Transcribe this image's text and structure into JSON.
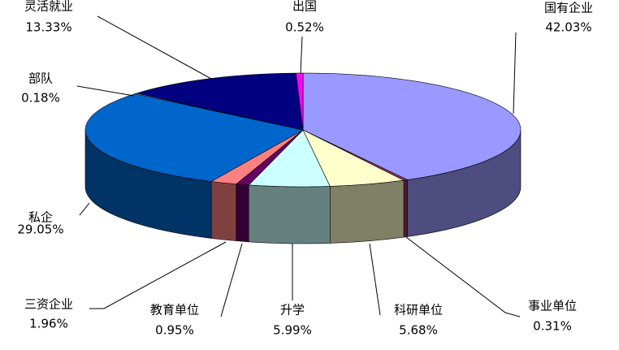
{
  "chart_data": {
    "type": "pie3d",
    "categories": [
      "国有企业",
      "事业单位",
      "科研单位",
      "升学",
      "教育单位",
      "三资企业",
      "私企",
      "部队",
      "灵活就业",
      "出国"
    ],
    "values": [
      42.03,
      0.31,
      5.68,
      5.99,
      0.95,
      1.96,
      29.05,
      0.18,
      13.33,
      0.52
    ],
    "value_labels": [
      "42.03%",
      "0.31%",
      "5.68%",
      "5.99%",
      "0.95%",
      "1.96%",
      "29.05%",
      "0.18%",
      "13.33%",
      "0.52%"
    ],
    "colors": [
      "#9999ff",
      "#993366",
      "#ffffcc",
      "#ccffff",
      "#660066",
      "#ff8080",
      "#0066cc",
      "#ccccff",
      "#000080",
      "#ff00ff"
    ]
  }
}
